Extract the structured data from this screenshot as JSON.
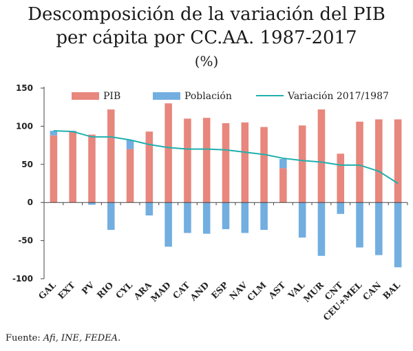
{
  "title": {
    "line1": "Descomposición de la variación del PIB",
    "line2": "per cápita por CC.AA. 1987-2017"
  },
  "subtitle": "(%)",
  "source": {
    "prefix": "Fuente: ",
    "italic": "Afi, INE, FEDEA",
    "suffix": "."
  },
  "colors": {
    "pib": "#e8877d",
    "poblacion": "#72aee0",
    "variacion": "#1fb0ad"
  },
  "chart_data": {
    "type": "bar",
    "categories": [
      "GAL",
      "EXT",
      "PV",
      "RIO",
      "CYL",
      "ARA",
      "MAD",
      "CAT",
      "AND",
      "ESP",
      "NAV",
      "CLM",
      "AST",
      "VAL",
      "MUR",
      "CNT",
      "CEU+MEL",
      "CAN",
      "BAL"
    ],
    "series": [
      {
        "name": "PIB",
        "kind": "bar",
        "values": [
          88,
          93,
          89,
          122,
          70,
          93,
          130,
          110,
          111,
          104,
          105,
          99,
          45,
          101,
          122,
          64,
          106,
          109,
          109
        ]
      },
      {
        "name": "Población",
        "kind": "bar",
        "values": [
          6,
          1,
          -3,
          -36,
          12,
          -17,
          -58,
          -40,
          -41,
          -35,
          -40,
          -36,
          12,
          -46,
          -70,
          -15,
          -59,
          -69,
          -85
        ]
      },
      {
        "name": "Variación 2017/1987",
        "kind": "line",
        "values": [
          94,
          93,
          86,
          86,
          82,
          76,
          72,
          70,
          70,
          69,
          66,
          63,
          58,
          55,
          53,
          49,
          49,
          41,
          25
        ]
      }
    ],
    "yticks": [
      150,
      100,
      50,
      0,
      -50,
      -100
    ],
    "ylim": [
      -100,
      150
    ],
    "grid": false,
    "legend_position": "top",
    "xlabel": "",
    "ylabel": ""
  }
}
